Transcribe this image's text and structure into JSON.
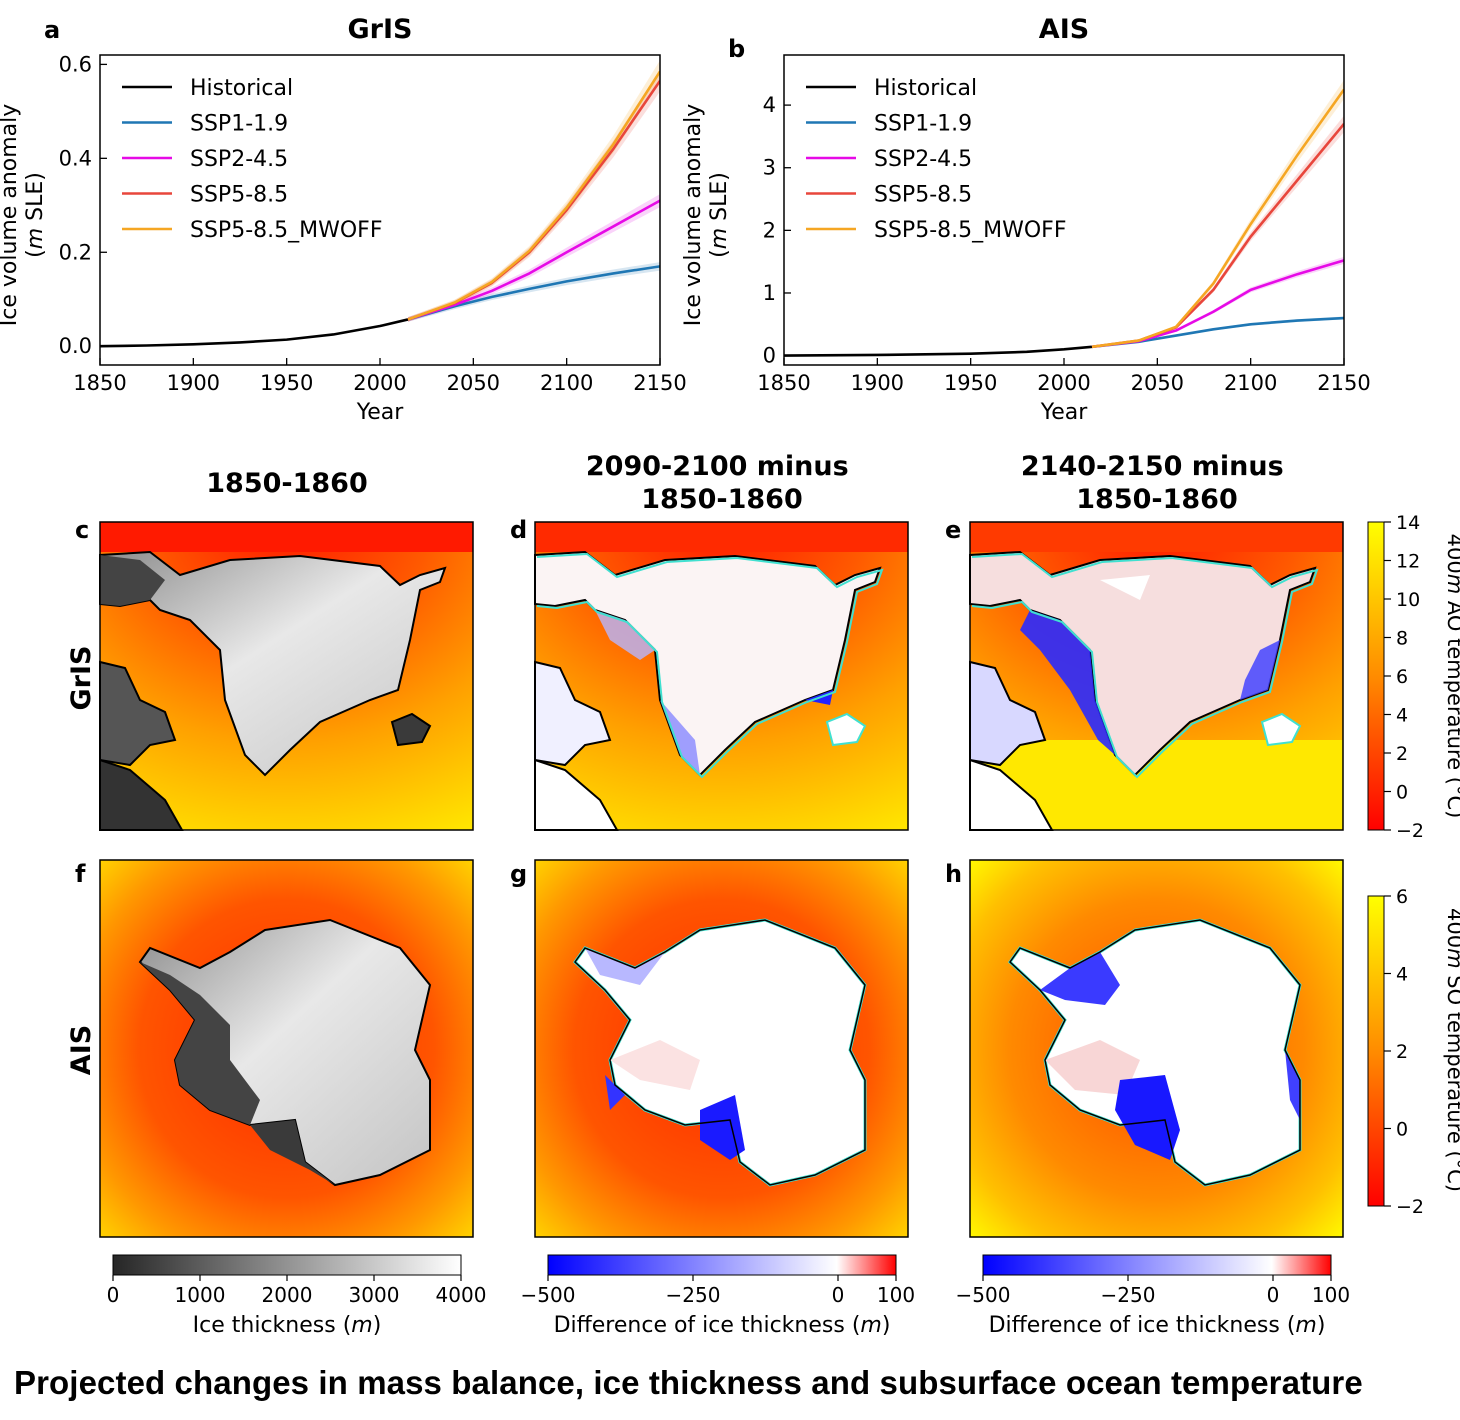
{
  "caption": "Projected changes in mass balance, ice thickness and subsurface ocean temperature",
  "line_panels": [
    {
      "letter": "a",
      "title": "GrIS"
    },
    {
      "letter": "b",
      "title": "AIS"
    }
  ],
  "legend_entries": [
    "Historical",
    "SSP1-1.9",
    "SSP2-4.5",
    "SSP5-8.5",
    "SSP5-8.5_MWOFF"
  ],
  "map_panels": {
    "columns": [
      "1850-1860",
      "2090-2100 minus\n1850-1860",
      "2140-2150 minus\n1850-1860"
    ],
    "column_lines": [
      [
        "1850-1860"
      ],
      [
        "2090-2100 minus",
        "1850-1860"
      ],
      [
        "2140-2150 minus",
        "1850-1860"
      ]
    ],
    "rows": [
      "GrIS",
      "AIS"
    ],
    "letters": [
      "c",
      "d",
      "e",
      "f",
      "g",
      "h"
    ]
  },
  "colorbars": {
    "ao_temperature": {
      "label": "400m AO temperature (°C)",
      "label_parts": [
        "400",
        "m",
        " AO temperature (°C)"
      ],
      "ticks": [
        "14",
        "12",
        "10",
        "8",
        "6",
        "4",
        "2",
        "0",
        "−2"
      ],
      "range": [
        -2,
        14
      ],
      "colors": [
        "#ff0000",
        "#ff8c00",
        "#ffff00"
      ]
    },
    "so_temperature": {
      "label": "400m SO temperature (°C)",
      "label_parts": [
        "400",
        "m",
        " SO temperature (°C)"
      ],
      "ticks": [
        "6",
        "4",
        "2",
        "0",
        "−2"
      ],
      "range": [
        -2,
        6
      ],
      "colors": [
        "#ff0000",
        "#ff8c00",
        "#ffff00"
      ]
    },
    "ice_thickness": {
      "label": "Ice thickness (m)",
      "label_parts": [
        "Ice thickness (",
        "m",
        ")"
      ],
      "ticks": [
        "0",
        "1000",
        "2000",
        "3000",
        "4000"
      ],
      "range": [
        0,
        4000
      ],
      "colors": [
        "#262626",
        "#ffffff"
      ]
    },
    "thickness_difference": {
      "label": "Difference of ice thickness (m)",
      "label_parts": [
        "Difference of ice thickness (",
        "m",
        ")"
      ],
      "ticks": [
        "−500",
        "−250",
        "0",
        "100"
      ],
      "range": [
        -500,
        100
      ],
      "colors": [
        "#0000ff",
        "#ffffff",
        "#ff0000"
      ]
    }
  },
  "chart_data": [
    {
      "type": "line",
      "panel": "a",
      "title": "GrIS",
      "xlabel": "Year",
      "ylabel": "Ice volume anomaly\n(m SLE)",
      "ylabel_lines": [
        [
          "Ice volume anomaly"
        ],
        [
          "(",
          "m",
          " SLE)"
        ]
      ],
      "xlim": [
        1850,
        2150
      ],
      "ylim": [
        -0.04,
        0.62
      ],
      "xticks": [
        1850,
        1900,
        1950,
        2000,
        2050,
        2100,
        2150
      ],
      "yticks": [
        0.0,
        0.2,
        0.4,
        0.6
      ],
      "ytick_labels": [
        "0.0",
        "0.2",
        "0.4",
        "0.6"
      ],
      "legend_position": "top-left",
      "series": [
        {
          "name": "Historical",
          "color": "#000000",
          "x": [
            1850,
            1875,
            1900,
            1925,
            1950,
            1975,
            2000,
            2015
          ],
          "y": [
            0.0,
            0.0015,
            0.004,
            0.008,
            0.014,
            0.025,
            0.043,
            0.057
          ]
        },
        {
          "name": "SSP1-1.9",
          "color": "#1f77b4",
          "x": [
            2015,
            2040,
            2060,
            2080,
            2100,
            2125,
            2150
          ],
          "y": [
            0.057,
            0.085,
            0.105,
            0.122,
            0.138,
            0.155,
            0.17
          ]
        },
        {
          "name": "SSP2-4.5",
          "color": "#e60ae6",
          "x": [
            2015,
            2040,
            2060,
            2080,
            2100,
            2125,
            2150
          ],
          "y": [
            0.057,
            0.088,
            0.118,
            0.155,
            0.2,
            0.255,
            0.31
          ]
        },
        {
          "name": "SSP5-8.5",
          "color": "#e8463c",
          "x": [
            2015,
            2040,
            2060,
            2080,
            2100,
            2125,
            2150
          ],
          "y": [
            0.057,
            0.092,
            0.135,
            0.2,
            0.29,
            0.42,
            0.565
          ]
        },
        {
          "name": "SSP5-8.5_MWOFF",
          "color": "#f5a623",
          "x": [
            2015,
            2040,
            2060,
            2080,
            2100,
            2125,
            2150
          ],
          "y": [
            0.057,
            0.093,
            0.137,
            0.203,
            0.295,
            0.43,
            0.585
          ]
        }
      ]
    },
    {
      "type": "line",
      "panel": "b",
      "title": "AIS",
      "xlabel": "Year",
      "ylabel": "Ice volume anomaly\n(m SLE)",
      "ylabel_lines": [
        [
          "Ice volume anomaly"
        ],
        [
          "(",
          "m",
          " SLE)"
        ]
      ],
      "xlim": [
        1850,
        2150
      ],
      "ylim": [
        -0.15,
        4.8
      ],
      "xticks": [
        1850,
        1900,
        1950,
        2000,
        2050,
        2100,
        2150
      ],
      "yticks": [
        0,
        1,
        2,
        3,
        4
      ],
      "ytick_labels": [
        "0",
        "1",
        "2",
        "3",
        "4"
      ],
      "legend_position": "top-left",
      "series": [
        {
          "name": "Historical",
          "color": "#000000",
          "x": [
            1850,
            1900,
            1950,
            1980,
            2000,
            2015
          ],
          "y": [
            0.0,
            0.01,
            0.03,
            0.06,
            0.1,
            0.14
          ]
        },
        {
          "name": "SSP1-1.9",
          "color": "#1f77b4",
          "x": [
            2015,
            2040,
            2060,
            2080,
            2100,
            2125,
            2150
          ],
          "y": [
            0.14,
            0.22,
            0.32,
            0.42,
            0.5,
            0.56,
            0.6
          ]
        },
        {
          "name": "SSP2-4.5",
          "color": "#e60ae6",
          "x": [
            2015,
            2040,
            2060,
            2080,
            2100,
            2125,
            2150
          ],
          "y": [
            0.14,
            0.23,
            0.4,
            0.7,
            1.05,
            1.3,
            1.52
          ]
        },
        {
          "name": "SSP5-8.5",
          "color": "#e8463c",
          "x": [
            2015,
            2040,
            2060,
            2080,
            2100,
            2125,
            2150
          ],
          "y": [
            0.14,
            0.24,
            0.45,
            1.05,
            1.9,
            2.8,
            3.7
          ]
        },
        {
          "name": "SSP5-8.5_MWOFF",
          "color": "#f5a623",
          "x": [
            2015,
            2040,
            2060,
            2080,
            2100,
            2125,
            2150
          ],
          "y": [
            0.14,
            0.24,
            0.46,
            1.15,
            2.1,
            3.2,
            4.25
          ]
        }
      ]
    }
  ]
}
